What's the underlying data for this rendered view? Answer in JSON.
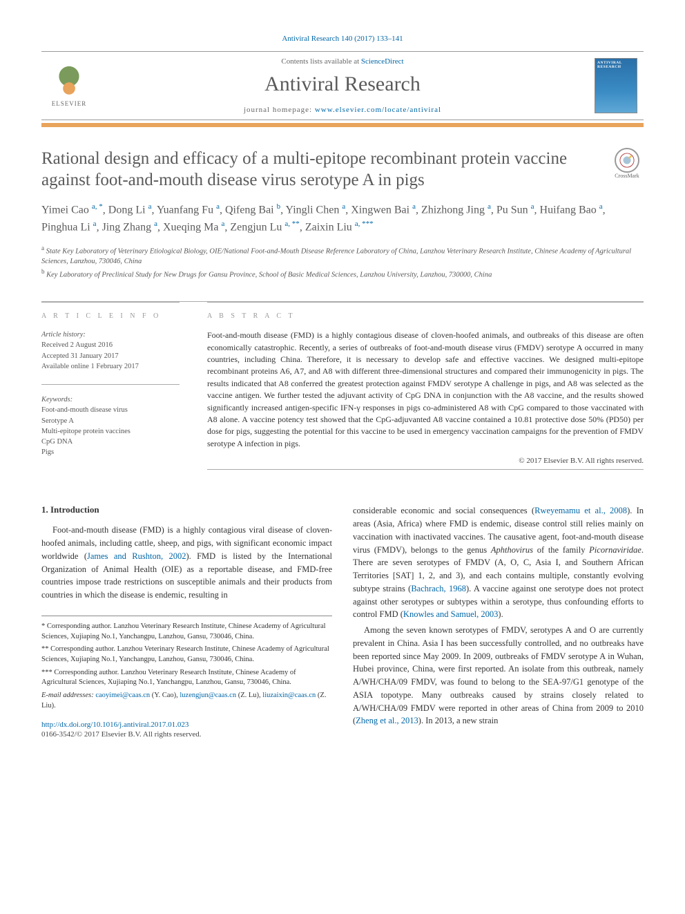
{
  "header": {
    "citation": "Antiviral Research 140 (2017) 133–141",
    "contents_prefix": "Contents lists available at ",
    "contents_link": "ScienceDirect",
    "journal_name": "Antiviral Research",
    "homepage_label": "journal homepage: ",
    "homepage_url": "www.elsevier.com/locate/antiviral",
    "publisher": "ELSEVIER",
    "cover_text": "ANTIVIRAL RESEARCH"
  },
  "article": {
    "title": "Rational design and efficacy of a multi-epitope recombinant protein vaccine against foot-and-mouth disease virus serotype A in pigs",
    "crossmark_label": "CrossMark"
  },
  "authors_line": "Yimei Cao <sup>a, *</sup>, Dong Li <sup>a</sup>, Yuanfang Fu <sup>a</sup>, Qifeng Bai <sup>b</sup>, Yingli Chen <sup>a</sup>, Xingwen Bai <sup>a</sup>, Zhizhong Jing <sup>a</sup>, Pu Sun <sup>a</sup>, Huifang Bao <sup>a</sup>, Pinghua Li <sup>a</sup>, Jing Zhang <sup>a</sup>, Xueqing Ma <sup>a</sup>, Zengjun Lu <sup>a, **</sup>, Zaixin Liu <sup>a, ***</sup>",
  "affiliations": {
    "a": "State Key Laboratory of Veterinary Etiological Biology, OIE/National Foot-and-Mouth Disease Reference Laboratory of China, Lanzhou Veterinary Research Institute, Chinese Academy of Agricultural Sciences, Lanzhou, 730046, China",
    "b": "Key Laboratory of Preclinical Study for New Drugs for Gansu Province, School of Basic Medical Sciences, Lanzhou University, Lanzhou, 730000, China"
  },
  "article_info": {
    "heading": "A R T I C L E   I N F O",
    "history_label": "Article history:",
    "received": "Received 2 August 2016",
    "accepted": "Accepted 31 January 2017",
    "online": "Available online 1 February 2017",
    "keywords_label": "Keywords:",
    "keywords": [
      "Foot-and-mouth disease virus",
      "Serotype A",
      "Multi-epitope protein vaccines",
      "CpG DNA",
      "Pigs"
    ]
  },
  "abstract": {
    "heading": "A B S T R A C T",
    "text": "Foot-and-mouth disease (FMD) is a highly contagious disease of cloven-hoofed animals, and outbreaks of this disease are often economically catastrophic. Recently, a series of outbreaks of foot-and-mouth disease virus (FMDV) serotype A occurred in many countries, including China. Therefore, it is necessary to develop safe and effective vaccines. We designed multi-epitope recombinant proteins A6, A7, and A8 with different three-dimensional structures and compared their immunogenicity in pigs. The results indicated that A8 conferred the greatest protection against FMDV serotype A challenge in pigs, and A8 was selected as the vaccine antigen. We further tested the adjuvant activity of CpG DNA in conjunction with the A8 vaccine, and the results showed significantly increased antigen-specific IFN-γ responses in pigs co-administered A8 with CpG compared to those vaccinated with A8 alone. A vaccine potency test showed that the CpG-adjuvanted A8 vaccine contained a 10.81 protective dose 50% (PD50) per dose for pigs, suggesting the potential for this vaccine to be used in emergency vaccination campaigns for the prevention of FMDV serotype A infection in pigs.",
    "copyright": "© 2017 Elsevier B.V. All rights reserved."
  },
  "body": {
    "intro_heading": "1. Introduction",
    "col1_p1_pre": "Foot-and-mouth disease (FMD) is a highly contagious viral disease of cloven-hoofed animals, including cattle, sheep, and pigs, with significant economic impact worldwide (",
    "col1_p1_cite": "James and Rushton, 2002",
    "col1_p1_post": "). FMD is listed by the International Organization of Animal Health (OIE) as a reportable disease, and FMD-free countries impose trade restrictions on susceptible animals and their products from countries in which the disease is endemic, resulting in",
    "col2_p1_pre": "considerable economic and social consequences (",
    "col2_p1_cite1": "Rweyemamu et al., 2008",
    "col2_p1_mid1": "). In areas (Asia, Africa) where FMD is endemic, disease control still relies mainly on vaccination with inactivated vaccines. The causative agent, foot-and-mouth disease virus (FMDV), belongs to the genus ",
    "col2_p1_it1": "Aphthovirus",
    "col2_p1_mid2": " of the family ",
    "col2_p1_it2": "Picornaviridae",
    "col2_p1_mid3": ". There are seven serotypes of FMDV (A, O, C, Asia I, and Southern African Territories [SAT] 1, 2, and 3), and each contains multiple, constantly evolving subtype strains (",
    "col2_p1_cite2": "Bachrach, 1968",
    "col2_p1_mid4": "). A vaccine against one serotype does not protect against other serotypes or subtypes within a serotype, thus confounding efforts to control FMD (",
    "col2_p1_cite3": "Knowles and Samuel, 2003",
    "col2_p1_end": ").",
    "col2_p2_pre": "Among the seven known serotypes of FMDV, serotypes A and O are currently prevalent in China. Asia I has been successfully controlled, and no outbreaks have been reported since May 2009. In 2009, outbreaks of FMDV serotype A in Wuhan, Hubei province, China, were first reported. An isolate from this outbreak, namely A/WH/CHA/09 FMDV, was found to belong to the SEA-97/G1 genotype of the ASIA topotype. Many outbreaks caused by strains closely related to A/WH/CHA/09 FMDV were reported in other areas of China from 2009 to 2010 (",
    "col2_p2_cite": "Zheng et al., 2013",
    "col2_p2_end": "). In 2013, a new strain"
  },
  "footnotes": {
    "c1": "* Corresponding author. Lanzhou Veterinary Research Institute, Chinese Academy of Agricultural Sciences, Xujiaping No.1, Yanchangpu, Lanzhou, Gansu, 730046, China.",
    "c2": "** Corresponding author. Lanzhou Veterinary Research Institute, Chinese Academy of Agricultural Sciences, Xujiaping No.1, Yanchangpu, Lanzhou, Gansu, 730046, China.",
    "c3": "*** Corresponding author. Lanzhou Veterinary Research Institute, Chinese Academy of Agricultural Sciences, Xujiaping No.1, Yanchangpu, Lanzhou, Gansu, 730046, China.",
    "email_label": "E-mail addresses:",
    "email1": "caoyimei@caas.cn",
    "email1_name": " (Y. Cao), ",
    "email2": "luzengjun@caas.cn",
    "email2_name": " (Z. Lu), ",
    "email3": "liuzaixin@caas.cn",
    "email3_name": " (Z. Liu)."
  },
  "footer": {
    "doi": "http://dx.doi.org/10.1016/j.antiviral.2017.01.023",
    "issn": "0166-3542/© 2017 Elsevier B.V. All rights reserved."
  },
  "colors": {
    "link": "#0066a6",
    "accent_bar": "#e8a35c",
    "heading_gray": "#5a5a5a",
    "text": "#333333",
    "muted": "#666666"
  }
}
